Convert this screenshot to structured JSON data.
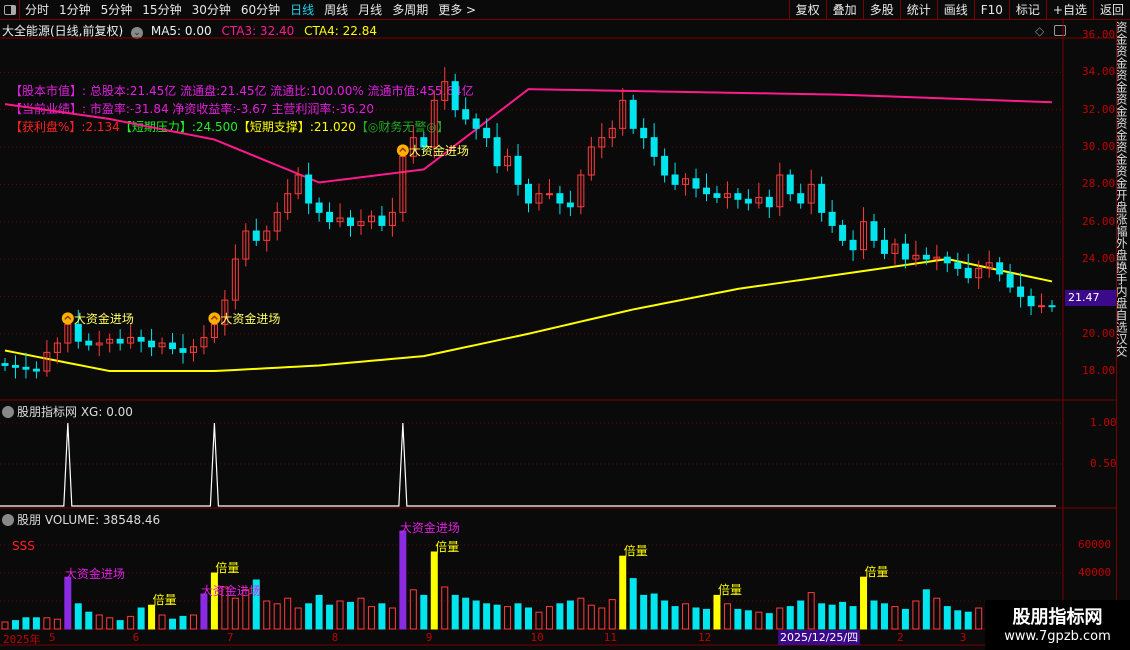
{
  "toolbar": {
    "periods": [
      "分时",
      "1分钟",
      "5分钟",
      "15分钟",
      "30分钟",
      "60分钟",
      "日线",
      "周线",
      "月线",
      "多周期",
      "更多 >"
    ],
    "active": "日线",
    "right": [
      "复权",
      "叠加",
      "多股",
      "统计",
      "画线",
      "F10",
      "标记",
      "+自选",
      "返回"
    ]
  },
  "header": {
    "stock": "大全能源(日线,前复权)",
    "ma5": "MA5: 0.00",
    "cta3": "CTA3: 32.40",
    "cta4": "CTA4: 22.84"
  },
  "info": {
    "line1_label": "【股本市值】:",
    "line1": "总股本:21.45亿 流通盘:21.45亿 流通比:100.00% 流通市值:455.64亿",
    "line2_label": "【当前业绩】:",
    "line2": "市盈率:-31.84 净资收益率:-3.67 主营利润率:-36.20",
    "line3_label": "【获利盘%】",
    "line3_val": ":2.134",
    "line3_b": "【短期压力】",
    "line3_b_val": ":24.500",
    "line3_c": "【短期支撑】",
    "line3_c_val": ":21.020",
    "line3_d": "【◎财务无警◎】"
  },
  "price_axis": [
    "36.00",
    "34.00",
    "32.00",
    "30.00",
    "28.00",
    "26.00",
    "24.00",
    "20.00",
    "18.00"
  ],
  "last_price": "21.47",
  "signals": {
    "main": "大资金进场",
    "vol_big": "大资金进场",
    "vol_double": "倍量",
    "sss": "SSS"
  },
  "indicator": {
    "title": "股朋指标网 XG: 0.00",
    "axis": [
      "1.00",
      "0.50"
    ],
    "spikes": [
      6,
      20,
      38
    ]
  },
  "volume_panel": {
    "title": "股朋 VOLUME: 38548.46",
    "axis": [
      "60000",
      "40000"
    ]
  },
  "x_axis": {
    "labels": [
      [
        "2025年",
        0
      ],
      [
        "5",
        4
      ],
      [
        "6",
        12
      ],
      [
        "7",
        21
      ],
      [
        "8",
        31
      ],
      [
        "9",
        40
      ],
      [
        "10",
        50
      ],
      [
        "11",
        57
      ],
      [
        "12",
        66
      ],
      [
        "2",
        85
      ],
      [
        "3",
        91
      ]
    ],
    "cursor_date": "2025/12/25/四"
  },
  "side_strip": "资金资金资金资金资金资金资金开盘涨幅外盘换手内盘自选汉交",
  "watermark": {
    "name": "股朋指标网",
    "url": "www.7gpzb.com"
  },
  "colors": {
    "up": "#ff3b3b",
    "down": "#00e5ee",
    "cta3": "#ff1a8c",
    "cta4": "#ffff00",
    "double": "#ffff00",
    "big": "#8a2be2"
  },
  "chart_data": {
    "closes": [
      18.3,
      18.2,
      18.1,
      18.0,
      19,
      19.5,
      20.5,
      19.6,
      19.4,
      19.5,
      19.7,
      19.5,
      19.8,
      19.6,
      19.3,
      19.5,
      19.2,
      19.0,
      19.3,
      19.8,
      20.5,
      21.8,
      24,
      25.5,
      25,
      25.5,
      26.5,
      27.5,
      28.5,
      27,
      26.5,
      26,
      26.2,
      25.8,
      26,
      26.3,
      25.8,
      26.5,
      29.5,
      30.5,
      30,
      32.5,
      33.5,
      32,
      31.5,
      31,
      30.5,
      29,
      29.5,
      28,
      27,
      27.5,
      27.5,
      27,
      26.8,
      28.5,
      30,
      30.5,
      31,
      32.5,
      31,
      30.5,
      29.5,
      28.5,
      28,
      28.3,
      27.8,
      27.5,
      27.3,
      27.5,
      27.2,
      27,
      27.3,
      26.8,
      28.5,
      27.5,
      27,
      28,
      26.5,
      25.8,
      25,
      24.5,
      26,
      25,
      24.3,
      24.8,
      24,
      24.2,
      24,
      24.1,
      23.8,
      23.5,
      23,
      23.5,
      23.8,
      23.2,
      22.5,
      22,
      21.5,
      21.5,
      21.47
    ],
    "cta3_every10": [
      32.3,
      31.5,
      30.4,
      28.1,
      28.8,
      33.1,
      33.0,
      32.9,
      32.8,
      32.6,
      32.4
    ],
    "cta4_every10": [
      19.1,
      18.0,
      18.0,
      18.3,
      18.8,
      20.0,
      21.3,
      22.4,
      23.2,
      24.0,
      22.8
    ],
    "volumes": [
      5,
      6,
      8,
      8,
      8,
      7,
      37,
      18,
      12,
      10,
      8,
      6,
      9,
      15,
      17,
      10,
      7,
      9,
      10,
      25,
      40,
      30,
      22,
      28,
      35,
      20,
      18,
      22,
      15,
      18,
      24,
      17,
      20,
      19,
      22,
      16,
      18,
      15,
      70,
      28,
      24,
      55,
      30,
      24,
      22,
      20,
      18,
      17,
      16,
      18,
      15,
      12,
      16,
      18,
      20,
      22,
      17,
      15,
      21,
      52,
      36,
      24,
      25,
      20,
      16,
      18,
      15,
      14,
      24,
      18,
      14,
      13,
      12,
      11,
      15,
      16,
      20,
      26,
      18,
      17,
      19,
      16,
      37,
      20,
      18,
      16,
      14,
      20,
      28,
      22,
      16,
      13,
      12,
      15,
      18,
      16,
      14,
      12,
      10,
      13,
      15
    ],
    "double_idx": [
      14,
      20,
      41,
      59,
      68,
      82
    ],
    "big_idx": [
      6,
      19,
      38
    ],
    "ylim_price": [
      17,
      36.5
    ],
    "ylim_vol": [
      0,
      70000
    ]
  }
}
